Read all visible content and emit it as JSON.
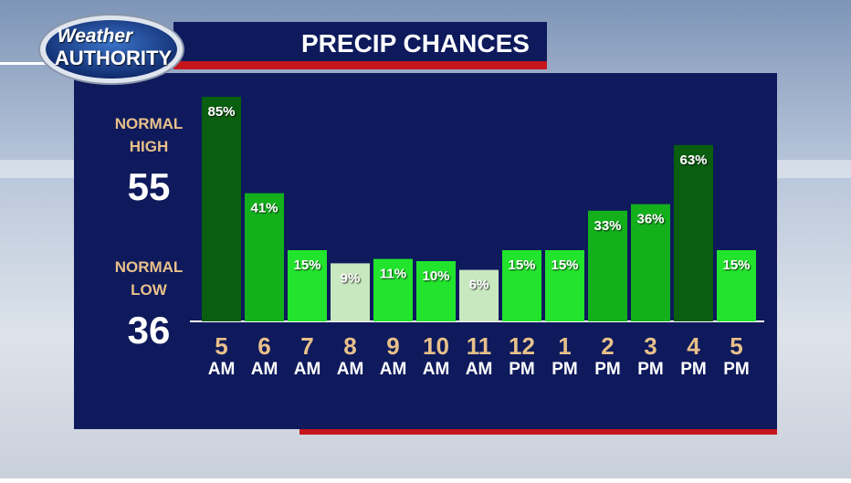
{
  "chart_data": {
    "type": "bar",
    "title": "PRECIP CHANCES",
    "logo": {
      "line1": "Weather",
      "line2": "AUTHORITY"
    },
    "side_info": [
      {
        "label_line1": "NORMAL",
        "label_line2": "HIGH",
        "value": 55
      },
      {
        "label_line1": "NORMAL",
        "label_line2": "LOW",
        "value": 36
      }
    ],
    "categories": [
      "5",
      "6",
      "7",
      "8",
      "9",
      "10",
      "11",
      "12",
      "1",
      "2",
      "3",
      "4",
      "5"
    ],
    "category_periods": [
      "AM",
      "AM",
      "AM",
      "AM",
      "AM",
      "AM",
      "AM",
      "PM",
      "PM",
      "PM",
      "PM",
      "PM",
      "PM"
    ],
    "values": [
      85,
      41,
      15,
      9,
      11,
      10,
      6,
      15,
      15,
      33,
      36,
      63,
      15
    ],
    "value_labels": [
      "85%",
      "41%",
      "15%",
      "9%",
      "11%",
      "10%",
      "6%",
      "15%",
      "15%",
      "33%",
      "36%",
      "63%",
      "15%"
    ],
    "colors": [
      "#0a5e10",
      "#13b01c",
      "#22e42c",
      "#c8e8c0",
      "#22e42c",
      "#22e42c",
      "#c8e8c0",
      "#22e42c",
      "#22e42c",
      "#13b01c",
      "#13b01c",
      "#0a5e10",
      "#22e42c"
    ],
    "ylim": [
      -17.5,
      100
    ]
  }
}
